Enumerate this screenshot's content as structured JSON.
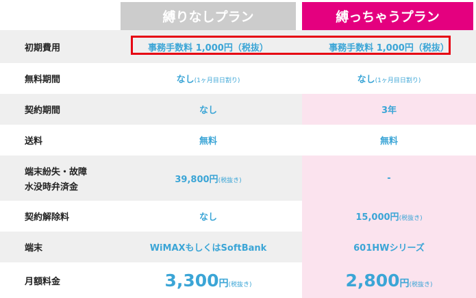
{
  "plans": {
    "a": "縛りなしプラン",
    "b": "縛っちゃうプラン"
  },
  "rows": {
    "initial": {
      "label": "初期費用",
      "a": "事務手数料 1,000円（税抜）",
      "b": "事務手数料 1,000円（税抜）"
    },
    "free": {
      "label": "無料期間",
      "a": "なし",
      "a_note": "(1ヶ月目日割り)",
      "b": "なし",
      "b_note": "(1ヶ月目日割り)"
    },
    "contract": {
      "label": "契約期間",
      "a": "なし",
      "b": "3年"
    },
    "shipping": {
      "label": "送料",
      "a": "無料",
      "b": "無料"
    },
    "damage": {
      "label1": "端末紛失・故障",
      "label2": "水没時弁済金",
      "a": "39,800円",
      "a_note": "(税抜き)",
      "b": "-"
    },
    "cancel": {
      "label": "契約解除料",
      "a": "なし",
      "b": "15,000円",
      "b_note": "(税抜き)"
    },
    "device": {
      "label": "端末",
      "a": "WiMAXもしくはSoftBank",
      "b": "601HWシリーズ"
    },
    "monthly": {
      "label": "月額料金",
      "a_num": "3,300",
      "a_unit": "円",
      "a_note": "(税抜き)",
      "b_num": "2,800",
      "b_unit": "円",
      "b_note": "(税抜き)"
    }
  },
  "colors": {
    "accent": "#e4007f",
    "value": "#3ba5d6",
    "highlight_border": "#e60012"
  }
}
